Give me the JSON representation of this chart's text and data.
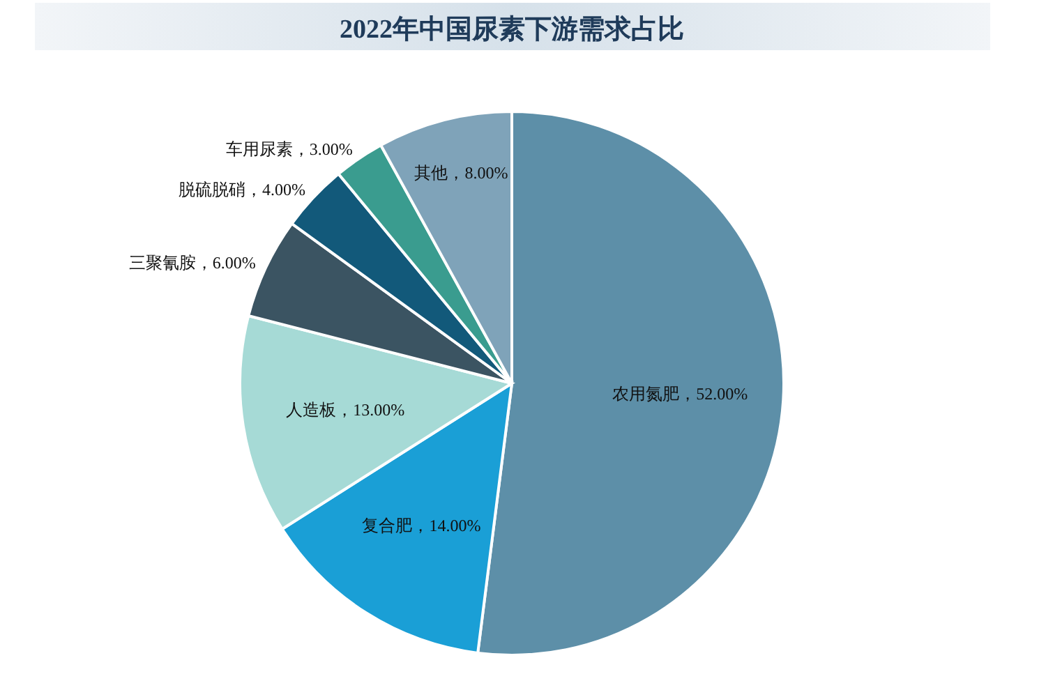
{
  "chart_data": {
    "type": "pie",
    "title": "2022年中国尿素下游需求占比",
    "categories": [
      "农用氮肥",
      "复合肥",
      "人造板",
      "三聚氰胺",
      "脱硫脱硝",
      "车用尿素",
      "其他"
    ],
    "values": [
      52,
      14,
      13,
      6,
      4,
      3,
      8
    ],
    "colors": [
      "#5d8fa8",
      "#1a9fd6",
      "#a6dad6",
      "#3b5462",
      "#12597a",
      "#3a9c8f",
      "#7fa3b9"
    ],
    "value_labels": [
      "，52.00%",
      "，14.00%",
      "，13.00%",
      "，6.00%",
      "，4.00%",
      "，3.00%",
      "，8.00%"
    ]
  }
}
